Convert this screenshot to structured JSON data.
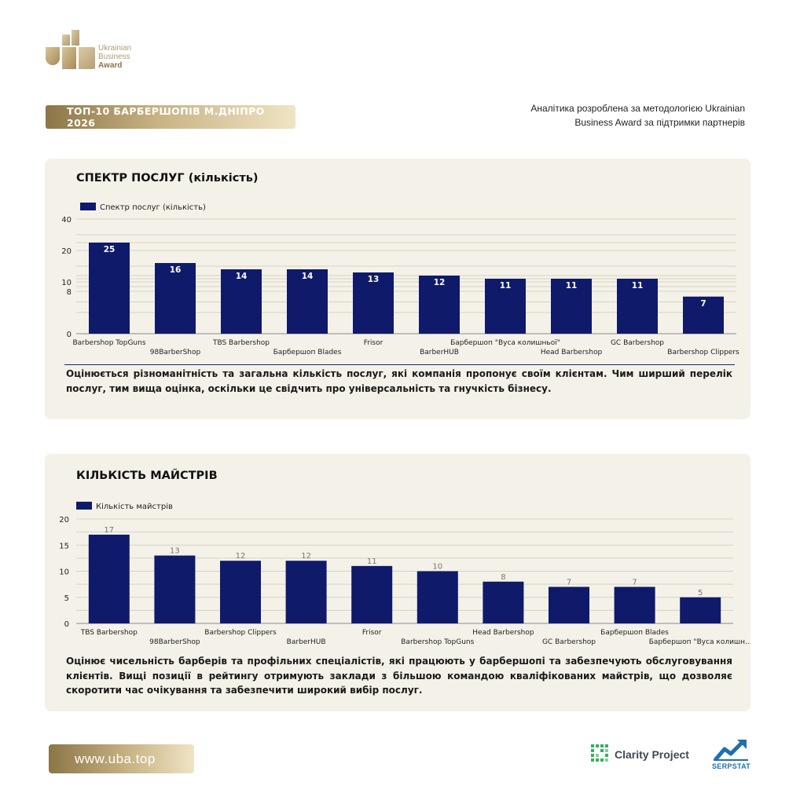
{
  "header": {
    "logo_lines": [
      "Ukrainian",
      "Business",
      "Award"
    ],
    "title": "ТОП-10 БАРБЕРШОПІВ М.ДНІПРО 2026",
    "analytics_note": "Аналітика розроблена за методологією Ukrainian Business Award за підтримки партнерів"
  },
  "colors": {
    "bar": "#0f1a6b",
    "gold": "#b39b6c",
    "card_bg": "#f4f1e8"
  },
  "chart_data": [
    {
      "type": "bar",
      "title": "СПЕКТР ПОСЛУГ (кількість)",
      "legend": "Спектр послуг (кількість)",
      "legend_position": "top-left",
      "categories": [
        "Barbershop TopGuns",
        "98BarberShop",
        "TBS Barbershop",
        "Барбершоп Blades",
        "Frisor",
        "BarberHUB",
        "Барбершоп \"Вуса колишньої\"",
        "Head Barbershop",
        "GC Barbershop",
        "Barbershop Clippers"
      ],
      "values": [
        25,
        16,
        14,
        14,
        13,
        12,
        11,
        11,
        11,
        7
      ],
      "yticks": [
        0,
        8,
        10,
        20,
        40
      ],
      "ylim": [
        0,
        40
      ],
      "grid": true,
      "data_labels": "inside-top-white"
    },
    {
      "type": "bar",
      "title": "КІЛЬКІСТЬ МАЙСТРІВ",
      "legend": "Кількість майстрів",
      "legend_position": "top-left",
      "categories": [
        "TBS Barbershop",
        "98BarberShop",
        "Barbershop Clippers",
        "BarberHUB",
        "Frisor",
        "Barbershop TopGuns",
        "Head Barbershop",
        "GC Barbershop",
        "Барбершоп Blades",
        "Барбершоп \"Вуса колишн..."
      ],
      "values": [
        17,
        13,
        12,
        12,
        11,
        10,
        8,
        7,
        7,
        5
      ],
      "yticks": [
        0,
        5,
        10,
        15,
        20
      ],
      "ylim": [
        0,
        20
      ],
      "grid": true,
      "data_labels": "above-grey"
    }
  ],
  "descriptions": [
    "Оцінюється різноманітність та загальна кількість послуг, які компанія пропонує своїм клієнтам. Чим ширший перелік послуг, тим вища оцінка, оскільки це свідчить про універсальність та гнучкість бізнесу.",
    "Оцінює чисельність барберів та профільних спеціалістів, які працюють у барбершопі та забезпечують обслуговування клієнтів. Вищі позиції в рейтингу отримують заклади з більшою командою кваліфікованих майстрів, що дозволяє скоротити час очікування та забезпечити широкий вибір послуг."
  ],
  "footer": {
    "url": "www.uba.top",
    "partner_1": "Clarity Project",
    "partner_2": "SERPSTAT"
  }
}
